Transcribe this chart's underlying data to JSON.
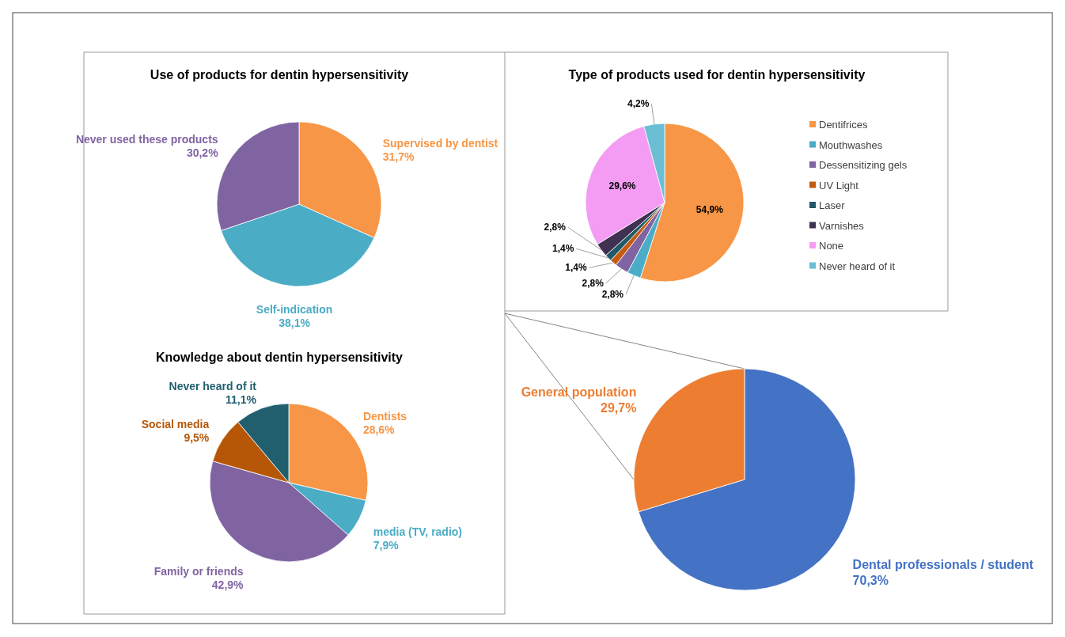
{
  "chart_data": [
    {
      "type": "pie",
      "title": "Use of products for dentin hypersensitivity",
      "categories": [
        "Supervised by dentist",
        "Self-indication",
        "Never used these products"
      ],
      "values": [
        31.7,
        38.1,
        30.2
      ],
      "colors": [
        "#f79646",
        "#4bacc6",
        "#8064a2"
      ],
      "value_labels": [
        "31,7%",
        "38,1%",
        "30,2%"
      ]
    },
    {
      "type": "pie",
      "title": "Type of products used for dentin hypersensitivity",
      "categories": [
        "Dentifrices",
        "Mouthwashes",
        "Dessensitizing gels",
        "UV Light",
        "Laser",
        "Varnishes",
        "None",
        "Never heard of it"
      ],
      "values": [
        54.9,
        2.8,
        2.8,
        1.4,
        1.4,
        2.8,
        29.6,
        4.2
      ],
      "colors": [
        "#f79646",
        "#4bacc6",
        "#8064a2",
        "#c55a11",
        "#215968",
        "#3f3151",
        "#f49cf4",
        "#6bbed3"
      ],
      "value_labels": [
        "54,9%",
        "2,8%",
        "2,8%",
        "1,4%",
        "1,4%",
        "2,8%",
        "29,6%",
        "4,2%"
      ],
      "legend": "right"
    },
    {
      "type": "pie",
      "title": "Knowledge about dentin hypersensitivity",
      "categories": [
        "Dentists",
        "media (TV, radio)",
        "Family or friends",
        "Social media",
        "Never heard of it"
      ],
      "values": [
        28.6,
        7.9,
        42.9,
        9.5,
        11.1
      ],
      "colors": [
        "#f79646",
        "#4bacc6",
        "#8064a2",
        "#b65708",
        "#215f6e"
      ],
      "value_labels": [
        "28,6%",
        "7,9%",
        "42,9%",
        "9,5%",
        "11,1%"
      ]
    },
    {
      "type": "pie",
      "categories": [
        "Dental professionals / student",
        "General population"
      ],
      "values": [
        70.3,
        29.7
      ],
      "colors": [
        "#4472c4",
        "#ed7d31"
      ],
      "value_labels": [
        "70,3%",
        "29,7%"
      ]
    }
  ]
}
